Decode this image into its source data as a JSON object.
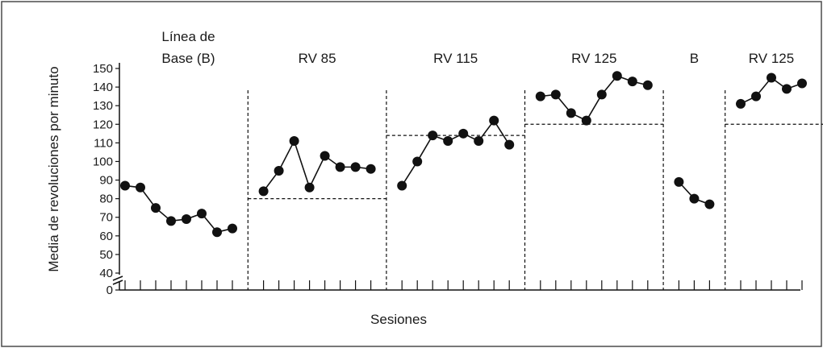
{
  "chart_data": {
    "type": "line",
    "xlabel": "Sesiones",
    "ylabel": "Media de revoluciones por minuto",
    "ylim": [
      40,
      150
    ],
    "yticks": [
      "150",
      "140",
      "130",
      "120",
      "110",
      "100",
      "90",
      "80",
      "70",
      "60",
      "50",
      "40",
      "0"
    ],
    "axis_break": true,
    "grid": false,
    "legend": "none",
    "phases": [
      {
        "label": "Línea de Base (B)",
        "label_lines": [
          "Línea de",
          "Base (B)"
        ],
        "criterion": null,
        "values": [
          87,
          86,
          75,
          68,
          69,
          72,
          62,
          64
        ]
      },
      {
        "label": "RV 85",
        "label_lines": [
          "RV 85"
        ],
        "criterion": 80,
        "values": [
          84,
          95,
          111,
          86,
          103,
          97,
          97,
          96
        ]
      },
      {
        "label": "RV 115",
        "label_lines": [
          "RV 115"
        ],
        "criterion": 114,
        "values": [
          87,
          100,
          114,
          111,
          115,
          111,
          122,
          109
        ]
      },
      {
        "label": "RV 125",
        "label_lines": [
          "RV 125"
        ],
        "criterion": 120,
        "values": [
          135,
          136,
          126,
          122,
          136,
          146,
          143,
          141
        ]
      },
      {
        "label": "B",
        "label_lines": [
          "B"
        ],
        "criterion": null,
        "values": [
          89,
          80,
          77
        ]
      },
      {
        "label": "RV 125",
        "label_lines": [
          "RV 125"
        ],
        "criterion": 120,
        "values": [
          131,
          135,
          145,
          139,
          142
        ]
      }
    ]
  },
  "colors": {
    "line": "#111111",
    "marker": "#111111",
    "frame": "#444444"
  }
}
